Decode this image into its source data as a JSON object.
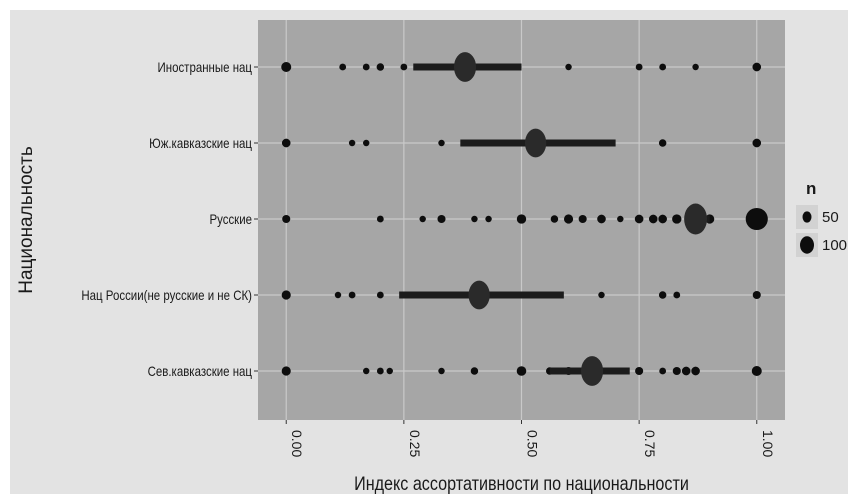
{
  "chart_data": {
    "type": "scatter",
    "title": "",
    "xlabel": "Индекс ассортативности по национальности",
    "ylabel": "Национальность",
    "xlim": [
      -0.06,
      1.06
    ],
    "x_ticks": [
      0.0,
      0.25,
      0.5,
      0.75,
      1.0
    ],
    "x_tick_labels": [
      "0.00",
      "0.25",
      "0.50",
      "0.75",
      "1.00"
    ],
    "grid": true,
    "categories": [
      "Иностранные нац",
      "Юж.кавказские нац",
      "Русские",
      "Нац России(не русские и не СК)",
      "Сев.кавказские нац"
    ],
    "series": [
      {
        "category": "Иностранные нац",
        "points": [
          [
            0.0,
            18
          ],
          [
            0.12,
            6
          ],
          [
            0.17,
            6
          ],
          [
            0.2,
            8
          ],
          [
            0.25,
            6
          ],
          [
            0.33,
            5
          ],
          [
            0.6,
            5
          ],
          [
            0.75,
            6
          ],
          [
            0.8,
            6
          ],
          [
            0.87,
            5
          ],
          [
            1.0,
            12
          ]
        ],
        "range": [
          0.27,
          0.5
        ],
        "estimate": 0.38,
        "estimate_n": 120
      },
      {
        "category": "Юж.кавказские нац",
        "points": [
          [
            0.0,
            12
          ],
          [
            0.14,
            5
          ],
          [
            0.17,
            5
          ],
          [
            0.33,
            5
          ],
          [
            0.8,
            8
          ],
          [
            1.0,
            12
          ]
        ],
        "range": [
          0.37,
          0.7
        ],
        "estimate": 0.53,
        "estimate_n": 110
      },
      {
        "category": "Русские",
        "points": [
          [
            0.0,
            10
          ],
          [
            0.2,
            6
          ],
          [
            0.29,
            5
          ],
          [
            0.33,
            10
          ],
          [
            0.4,
            5
          ],
          [
            0.43,
            5
          ],
          [
            0.5,
            15
          ],
          [
            0.57,
            8
          ],
          [
            0.6,
            14
          ],
          [
            0.63,
            10
          ],
          [
            0.67,
            12
          ],
          [
            0.71,
            5
          ],
          [
            0.75,
            12
          ],
          [
            0.78,
            12
          ],
          [
            0.8,
            12
          ],
          [
            0.83,
            15
          ],
          [
            0.86,
            25
          ],
          [
            0.9,
            14
          ],
          [
            1.0,
            120
          ]
        ],
        "range": [
          0.85,
          0.9
        ],
        "estimate": 0.87,
        "estimate_n": 130
      },
      {
        "category": "Нац России(не русские и не СК)",
        "points": [
          [
            0.0,
            14
          ],
          [
            0.11,
            5
          ],
          [
            0.14,
            6
          ],
          [
            0.2,
            6
          ],
          [
            0.67,
            5
          ],
          [
            0.8,
            8
          ],
          [
            0.83,
            6
          ],
          [
            1.0,
            10
          ]
        ],
        "range": [
          0.24,
          0.59
        ],
        "estimate": 0.41,
        "estimate_n": 110
      },
      {
        "category": "Сев.кавказские нац",
        "points": [
          [
            0.0,
            14
          ],
          [
            0.17,
            5
          ],
          [
            0.2,
            6
          ],
          [
            0.22,
            5
          ],
          [
            0.33,
            5
          ],
          [
            0.4,
            8
          ],
          [
            0.5,
            16
          ],
          [
            0.56,
            8
          ],
          [
            0.6,
            10
          ],
          [
            0.75,
            10
          ],
          [
            0.8,
            6
          ],
          [
            0.83,
            10
          ],
          [
            0.85,
            12
          ],
          [
            0.87,
            12
          ],
          [
            1.0,
            18
          ]
        ],
        "range": [
          0.56,
          0.73
        ],
        "estimate": 0.65,
        "estimate_n": 120
      }
    ],
    "legend": {
      "title": "n",
      "entries": [
        {
          "label": "50",
          "value": 50
        },
        {
          "label": "100",
          "value": 100
        }
      ],
      "position": "right"
    },
    "colors": {
      "panel": "#a6a6a6",
      "grid": "#c9c9c9",
      "points": "#0d0d0d",
      "estimate": "#2a2a2a",
      "range": "#1c1c1c"
    }
  }
}
